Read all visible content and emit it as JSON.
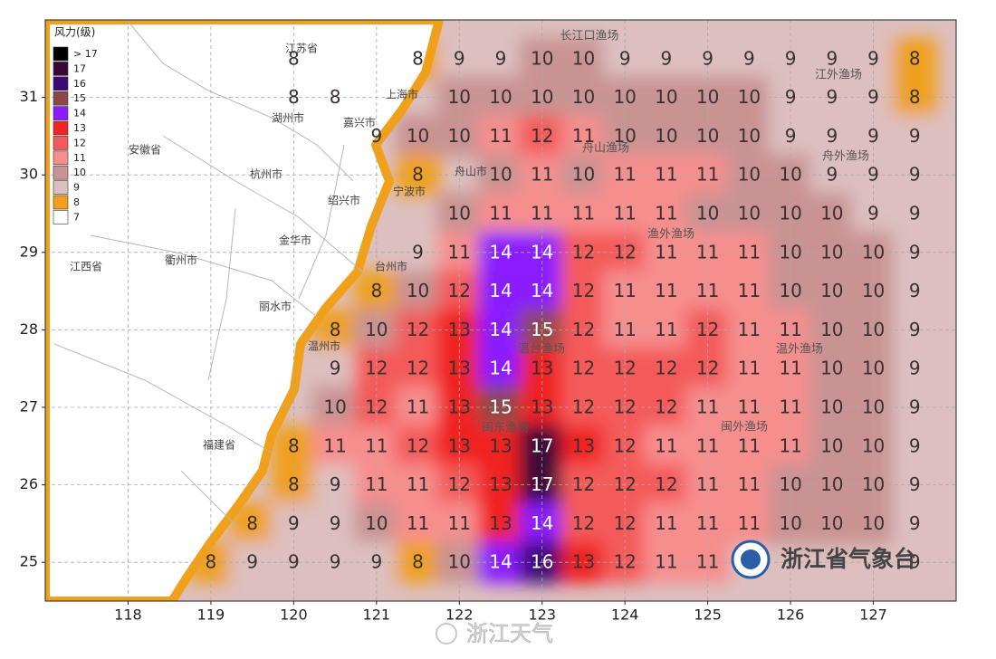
{
  "map": {
    "xlim": [
      117,
      128
    ],
    "ylim": [
      24.5,
      32
    ],
    "xticks": [
      118,
      119,
      120,
      121,
      122,
      123,
      124,
      125,
      126,
      127
    ],
    "yticks": [
      25,
      26,
      27,
      28,
      29,
      30,
      31
    ],
    "grid": true,
    "legend_title": "风力(级)",
    "legend": [
      {
        "label": "> 17",
        "color": "#000000"
      },
      {
        "label": "17",
        "color": "#3a0838"
      },
      {
        "label": "16",
        "color": "#3c0a78"
      },
      {
        "label": "15",
        "color": "#8c4848"
      },
      {
        "label": "14",
        "color": "#8a1cff"
      },
      {
        "label": "13",
        "color": "#f02424"
      },
      {
        "label": "12",
        "color": "#f45a5a"
      },
      {
        "label": "11",
        "color": "#f78e8e"
      },
      {
        "label": "10",
        "color": "#c99393"
      },
      {
        "label": "9",
        "color": "#ddbfbf"
      },
      {
        "label": "8",
        "color": "#f0a01a"
      },
      {
        "label": "7",
        "color": "#ffffff"
      }
    ],
    "rows": [
      {
        "lat": 31.5,
        "lons": [
          120,
          121.5,
          122,
          122.5,
          123,
          123.5,
          124,
          124.5,
          125,
          125.5,
          126,
          126.5,
          127,
          127.5
        ],
        "values": [
          8,
          8,
          9,
          9,
          10,
          10,
          9,
          9,
          9,
          9,
          9,
          9,
          9,
          8
        ]
      },
      {
        "lat": 31,
        "lons": [
          120,
          120.5,
          122,
          122.5,
          123,
          123.5,
          124,
          124.5,
          125,
          125.5,
          126,
          126.5,
          127,
          127.5
        ],
        "values": [
          8,
          8,
          10,
          10,
          10,
          10,
          10,
          10,
          10,
          10,
          9,
          9,
          9,
          8
        ]
      },
      {
        "lat": 30.5,
        "lons": [
          121,
          121.5,
          122,
          122.5,
          123,
          123.5,
          124,
          124.5,
          125,
          125.5,
          126,
          126.5,
          127,
          127.5
        ],
        "values": [
          9,
          10,
          10,
          11,
          12,
          11,
          10,
          10,
          10,
          10,
          9,
          9,
          9,
          9
        ]
      },
      {
        "lat": 30,
        "lons": [
          121.5,
          122.5,
          123,
          123.5,
          124,
          124.5,
          125,
          125.5,
          126,
          126.5,
          127,
          127.5
        ],
        "values": [
          8,
          10,
          11,
          10,
          11,
          11,
          11,
          10,
          10,
          9,
          9,
          9
        ]
      },
      {
        "lat": 29.5,
        "lons": [
          122,
          122.5,
          123,
          123.5,
          124,
          124.5,
          125,
          125.5,
          126,
          126.5,
          127,
          127.5
        ],
        "values": [
          10,
          11,
          11,
          11,
          11,
          11,
          10,
          10,
          10,
          10,
          9,
          9
        ]
      },
      {
        "lat": 29,
        "lons": [
          121.5,
          122,
          122.5,
          123,
          123.5,
          124,
          124.5,
          125,
          125.5,
          126,
          126.5,
          127,
          127.5
        ],
        "values": [
          9,
          11,
          14,
          14,
          12,
          12,
          11,
          11,
          11,
          10,
          10,
          10,
          9
        ]
      },
      {
        "lat": 28.5,
        "lons": [
          121,
          121.5,
          122,
          122.5,
          123,
          123.5,
          124,
          124.5,
          125,
          125.5,
          126,
          126.5,
          127,
          127.5
        ],
        "values": [
          8,
          10,
          12,
          14,
          14,
          12,
          11,
          11,
          11,
          11,
          10,
          10,
          10,
          9
        ]
      },
      {
        "lat": 28,
        "lons": [
          120.5,
          121,
          121.5,
          122,
          122.5,
          123,
          123.5,
          124,
          124.5,
          125,
          125.5,
          126,
          126.5,
          127,
          127.5
        ],
        "values": [
          8,
          10,
          12,
          13,
          14,
          15,
          12,
          11,
          11,
          12,
          11,
          11,
          10,
          10,
          9
        ]
      },
      {
        "lat": 27.5,
        "lons": [
          120.5,
          121,
          121.5,
          122,
          122.5,
          123,
          123.5,
          124,
          124.5,
          125,
          125.5,
          126,
          126.5,
          127,
          127.5
        ],
        "values": [
          9,
          12,
          12,
          13,
          14,
          13,
          12,
          12,
          12,
          12,
          11,
          11,
          10,
          10,
          9
        ]
      },
      {
        "lat": 27,
        "lons": [
          120.5,
          121,
          121.5,
          122,
          122.5,
          123,
          123.5,
          124,
          124.5,
          125,
          125.5,
          126,
          126.5,
          127,
          127.5
        ],
        "values": [
          10,
          12,
          11,
          13,
          15,
          13,
          12,
          12,
          12,
          11,
          11,
          11,
          10,
          10,
          9
        ]
      },
      {
        "lat": 26.5,
        "lons": [
          120,
          120.5,
          121,
          121.5,
          122,
          122.5,
          123,
          123.5,
          124,
          124.5,
          125,
          125.5,
          126,
          126.5,
          127,
          127.5
        ],
        "values": [
          8,
          11,
          11,
          12,
          13,
          13,
          17,
          13,
          12,
          11,
          11,
          11,
          11,
          10,
          10,
          9
        ]
      },
      {
        "lat": 26,
        "lons": [
          120,
          120.5,
          121,
          121.5,
          122,
          122.5,
          123,
          123.5,
          124,
          124.5,
          125,
          125.5,
          126,
          126.5,
          127,
          127.5
        ],
        "values": [
          8,
          9,
          11,
          11,
          12,
          13,
          17,
          12,
          12,
          12,
          11,
          11,
          10,
          10,
          10,
          9
        ]
      },
      {
        "lat": 25.5,
        "lons": [
          119.5,
          120,
          120.5,
          121,
          121.5,
          122,
          122.5,
          123,
          123.5,
          124,
          124.5,
          125,
          125.5,
          126,
          126.5,
          127,
          127.5
        ],
        "values": [
          8,
          9,
          9,
          10,
          11,
          11,
          13,
          14,
          12,
          12,
          11,
          11,
          11,
          10,
          10,
          10,
          9
        ]
      },
      {
        "lat": 25,
        "lons": [
          119,
          119.5,
          120,
          120.5,
          121,
          121.5,
          122,
          122.5,
          123,
          123.5,
          124,
          124.5,
          125,
          127.5
        ],
        "values": [
          8,
          9,
          9,
          9,
          9,
          8,
          10,
          14,
          16,
          13,
          12,
          11,
          11,
          9
        ]
      }
    ],
    "places": [
      "江苏省",
      "上海市",
      "湖州市",
      "嘉兴市",
      "安徽省",
      "杭州市",
      "舟山市",
      "宁波市",
      "绍兴市",
      "金华市",
      "江西省",
      "衢州市",
      "台州市",
      "丽水市",
      "温州市",
      "福建省"
    ],
    "fishing_grounds": [
      "长江口渔场",
      "江外渔场",
      "舟山渔场",
      "舟外渔场",
      "渔外渔场",
      "温台渔场",
      "温外渔场",
      "闽东渔场",
      "闽外渔场"
    ],
    "agency": "浙江省气象台",
    "watermark": "浙江天气"
  }
}
